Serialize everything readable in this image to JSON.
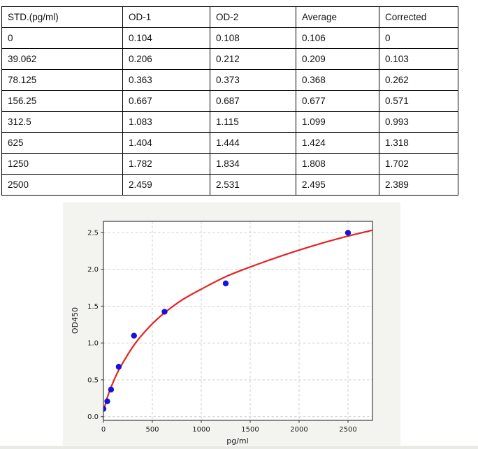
{
  "table": {
    "headers": [
      "STD.(pg/ml)",
      "OD-1",
      "OD-2",
      "Average",
      "Corrected"
    ],
    "rows": [
      [
        "0",
        "0.104",
        "0.108",
        "0.106",
        "0"
      ],
      [
        "39.062",
        "0.206",
        "0.212",
        "0.209",
        "0.103"
      ],
      [
        "78.125",
        "0.363",
        "0.373",
        "0.368",
        "0.262"
      ],
      [
        "156.25",
        "0.667",
        "0.687",
        "0.677",
        "0.571"
      ],
      [
        "312.5",
        "1.083",
        "1.115",
        "1.099",
        "0.993"
      ],
      [
        "625",
        "1.404",
        "1.444",
        "1.424",
        "1.318"
      ],
      [
        "1250",
        "1.782",
        "1.834",
        "1.808",
        "1.702"
      ],
      [
        "2500",
        "2.459",
        "2.531",
        "2.495",
        "2.389"
      ]
    ]
  },
  "chart_data": {
    "type": "scatter",
    "title": "",
    "xlabel": "pg/ml",
    "ylabel": "OD450",
    "xlim": [
      0,
      2750
    ],
    "ylim": [
      -0.05,
      2.65
    ],
    "x_ticks": [
      0,
      500,
      1000,
      1500,
      2000,
      2500
    ],
    "y_ticks": [
      "0.0",
      "0.5",
      "1.0",
      "1.5",
      "2.0",
      "2.5"
    ],
    "grid": {
      "visible": true,
      "style": "dashed",
      "color": "#c9c9c9"
    },
    "legend": "none",
    "figure_bg": "#f3f3f0",
    "plot_bg": "#ffffff",
    "spine_color": "#3d3d3d",
    "series": [
      {
        "name": "standard-points",
        "type": "scatter",
        "marker": "circle",
        "color": "#1414dd",
        "x": [
          0,
          39.062,
          78.125,
          156.25,
          312.5,
          625,
          1250,
          2500
        ],
        "y": [
          0.106,
          0.209,
          0.368,
          0.677,
          1.099,
          1.424,
          1.808,
          2.495
        ]
      },
      {
        "name": "fit-curve",
        "type": "line",
        "color": "#e62222",
        "x": [
          0,
          39,
          78,
          156,
          312,
          470,
          625,
          800,
          1000,
          1250,
          1500,
          1750,
          2000,
          2250,
          2500,
          2750
        ],
        "y": [
          0.07,
          0.26,
          0.4,
          0.63,
          0.97,
          1.22,
          1.41,
          1.58,
          1.73,
          1.9,
          2.03,
          2.15,
          2.26,
          2.36,
          2.45,
          2.53
        ]
      }
    ]
  }
}
